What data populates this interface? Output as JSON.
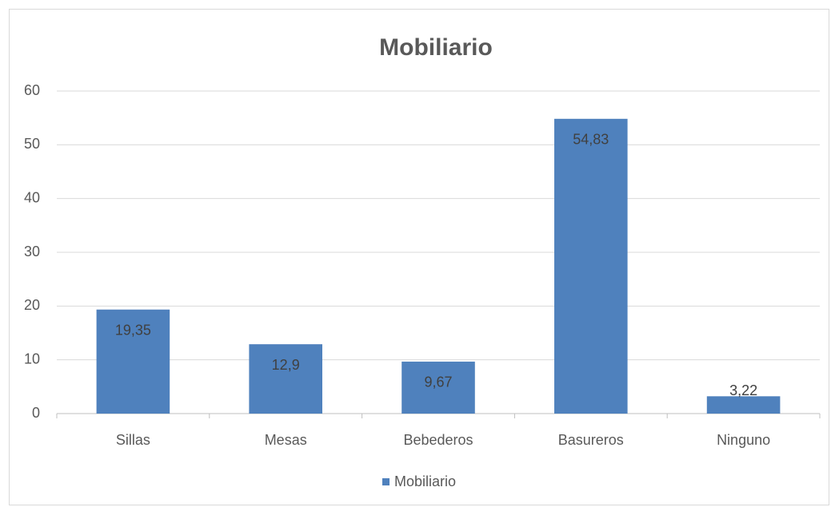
{
  "chart_data": {
    "type": "bar",
    "title": "Mobiliario",
    "categories": [
      "Sillas",
      "Mesas",
      "Bebederos",
      "Basureros",
      "Ninguno"
    ],
    "series": [
      {
        "name": "Mobiliario",
        "color": "#4f81bd",
        "values": [
          19.35,
          12.9,
          9.67,
          54.83,
          3.22
        ],
        "value_labels": [
          "19,35",
          "12,9",
          "9,67",
          "54,83",
          "3,22"
        ]
      }
    ],
    "ylim": [
      0,
      60
    ],
    "yticks": [
      0,
      10,
      20,
      30,
      40,
      50,
      60
    ],
    "grid": true,
    "legend": "bottom"
  }
}
